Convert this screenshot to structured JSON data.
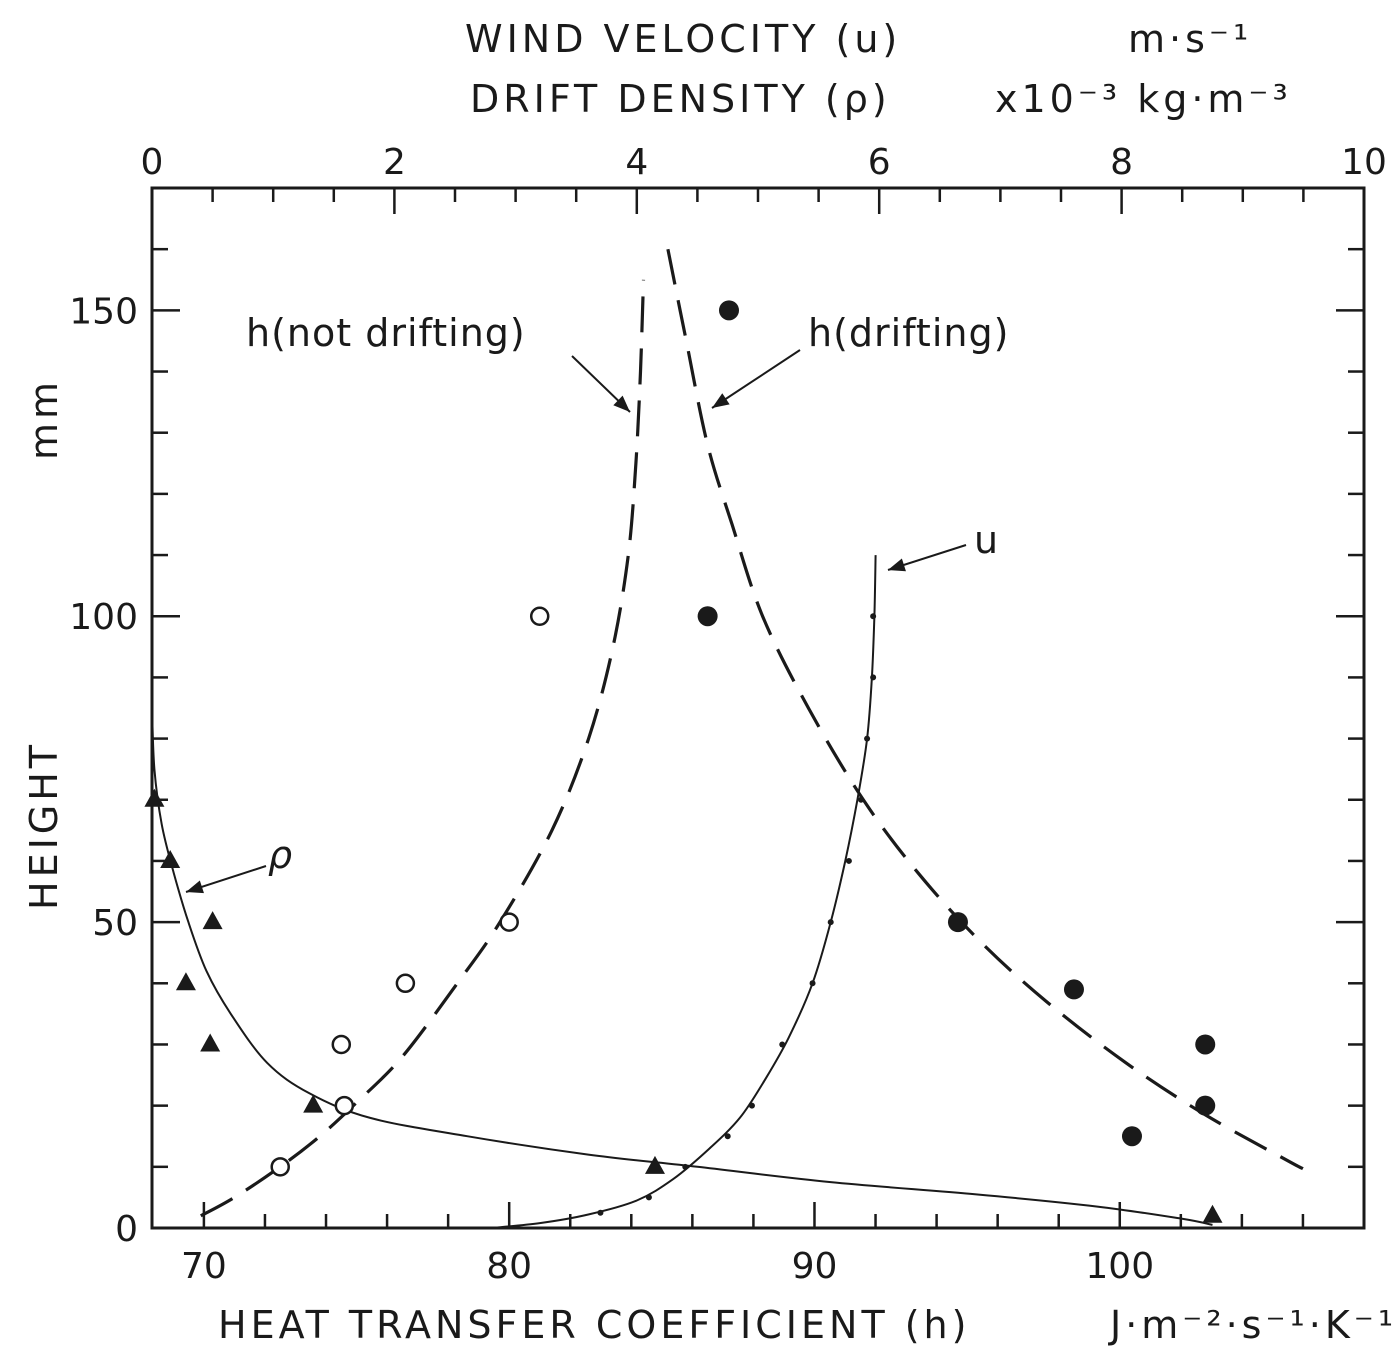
{
  "chart_data": {
    "type": "scatter",
    "bottom_axis": {
      "label": "HEAT TRANSFER COEFFICIENT (h)",
      "unit": "J·m⁻²·s⁻¹·K⁻¹",
      "range": [
        68.3,
        108
      ],
      "ticks": [
        70,
        80,
        90,
        100
      ]
    },
    "top_axis": {
      "label_line1": "WIND VELOCITY (u)",
      "unit_line1": "m·s⁻¹",
      "label_line2": "DRIFT DENSITY (ρ)",
      "unit_line2": "x10⁻³ kg·m⁻³",
      "range": [
        0,
        10
      ],
      "ticks": [
        0,
        2,
        4,
        6,
        8,
        10
      ]
    },
    "left_axis": {
      "label": "HEIGHT",
      "unit": "mm",
      "range": [
        0,
        170
      ],
      "ticks": [
        0,
        50,
        100,
        150
      ]
    },
    "series": [
      {
        "name": "h(not drifting)",
        "axis": "bottom",
        "marker": "open-circle",
        "points": [
          [
            72.5,
            10
          ],
          [
            74.6,
            20
          ],
          [
            74.5,
            30
          ],
          [
            76.6,
            40
          ],
          [
            80,
            50
          ],
          [
            81,
            100
          ]
        ],
        "curve": [
          [
            69.9,
            2
          ],
          [
            71,
            5
          ],
          [
            72.5,
            10
          ],
          [
            73.8,
            15
          ],
          [
            75,
            20.5
          ],
          [
            76.5,
            28
          ],
          [
            78.3,
            40
          ],
          [
            79.7,
            50
          ],
          [
            81.4,
            65
          ],
          [
            82.6,
            80
          ],
          [
            83.4,
            95
          ],
          [
            83.9,
            110
          ],
          [
            84.15,
            125
          ],
          [
            84.3,
            140
          ],
          [
            84.4,
            155
          ]
        ],
        "dashed": true
      },
      {
        "name": "h(drifting)",
        "axis": "bottom",
        "marker": "filled-circle",
        "points": [
          [
            87.2,
            150
          ],
          [
            86.5,
            100
          ],
          [
            94.7,
            50
          ],
          [
            98.5,
            39
          ],
          [
            102.8,
            30
          ],
          [
            102.8,
            20
          ],
          [
            100.4,
            15
          ]
        ],
        "curve": [
          [
            85.2,
            160
          ],
          [
            85.8,
            145
          ],
          [
            86.5,
            128
          ],
          [
            87.3,
            115
          ],
          [
            88.3,
            100
          ],
          [
            89.8,
            85
          ],
          [
            91.6,
            70
          ],
          [
            93.4,
            58
          ],
          [
            95.4,
            47
          ],
          [
            97.6,
            37
          ],
          [
            100.2,
            27
          ],
          [
            102.8,
            18.5
          ],
          [
            105.5,
            11
          ],
          [
            106,
            9.7
          ]
        ],
        "dashed": true
      },
      {
        "name": "u",
        "axis": "top",
        "marker": "small-dot",
        "points": [
          [
            3.7,
            2.5
          ],
          [
            4.1,
            5
          ],
          [
            4.4,
            10
          ],
          [
            4.75,
            15
          ],
          [
            4.95,
            20
          ],
          [
            5.2,
            30
          ],
          [
            5.45,
            40
          ],
          [
            5.6,
            50
          ],
          [
            5.75,
            60
          ],
          [
            5.85,
            70
          ],
          [
            5.9,
            80
          ],
          [
            5.95,
            90
          ],
          [
            5.95,
            100
          ]
        ],
        "curve": [
          [
            2.8,
            0
          ],
          [
            3.2,
            0.8
          ],
          [
            3.6,
            2.2
          ],
          [
            4.0,
            4.5
          ],
          [
            4.3,
            8
          ],
          [
            4.6,
            13
          ],
          [
            4.85,
            18
          ],
          [
            5.05,
            24
          ],
          [
            5.25,
            31
          ],
          [
            5.45,
            40
          ],
          [
            5.6,
            50
          ],
          [
            5.72,
            60
          ],
          [
            5.82,
            70
          ],
          [
            5.9,
            80
          ],
          [
            5.94,
            90
          ],
          [
            5.96,
            100
          ],
          [
            5.97,
            110
          ]
        ]
      },
      {
        "name": "ρ",
        "axis": "top",
        "marker": "filled-triangle",
        "points": [
          [
            0.02,
            70
          ],
          [
            0.15,
            60
          ],
          [
            0.5,
            50
          ],
          [
            0.28,
            40
          ],
          [
            0.48,
            30
          ],
          [
            1.33,
            20
          ],
          [
            4.15,
            10
          ],
          [
            8.75,
            2
          ]
        ],
        "curve": [
          [
            0,
            85
          ],
          [
            0.02,
            75
          ],
          [
            0.08,
            66
          ],
          [
            0.18,
            58
          ],
          [
            0.3,
            50
          ],
          [
            0.45,
            42
          ],
          [
            0.65,
            35
          ],
          [
            0.95,
            27
          ],
          [
            1.3,
            22
          ],
          [
            1.8,
            18
          ],
          [
            2.6,
            15
          ],
          [
            3.6,
            12
          ],
          [
            4.5,
            10
          ],
          [
            5.6,
            7.5
          ],
          [
            6.8,
            5.5
          ],
          [
            7.8,
            3.5
          ],
          [
            8.5,
            1.5
          ],
          [
            8.75,
            0.5
          ]
        ]
      }
    ],
    "annotations": {
      "h_not_drifting": "h(not drifting)",
      "h_drifting": "h(drifting)",
      "u": "u",
      "rho": "ρ"
    },
    "grid": false
  }
}
